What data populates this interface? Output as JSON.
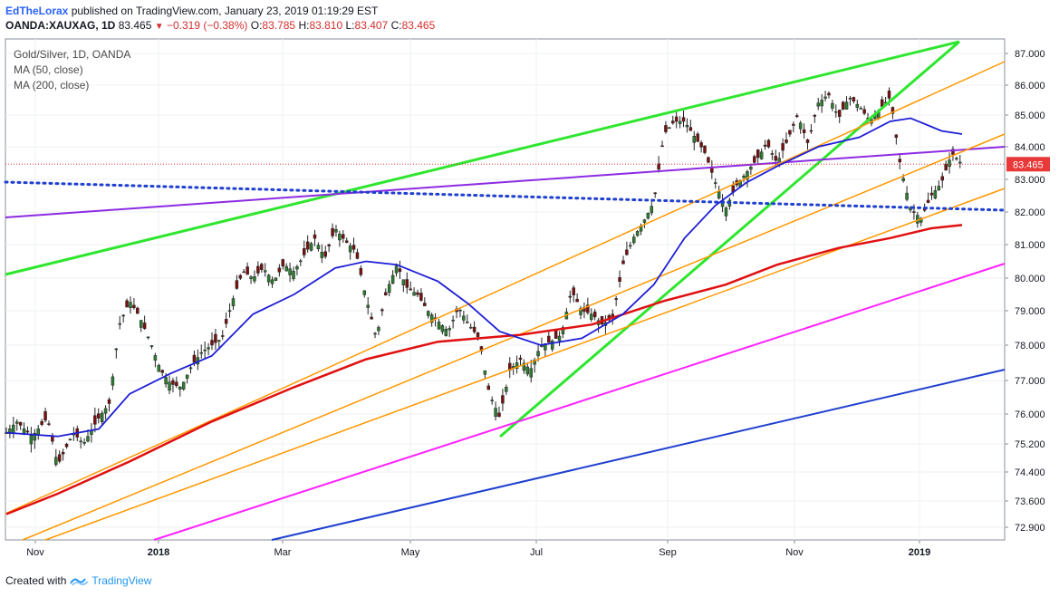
{
  "header": {
    "author": "EdTheLorax",
    "published_text": "published on TradingView.com, January 23, 2019 01:19:29 EST",
    "symbol": "OANDA:XAUXAG, 1D",
    "last": "83.465",
    "change": "−0.319 (−0.38%)",
    "open_label": "O:",
    "open": "83.785",
    "high_label": "H:",
    "high": "83.810",
    "low_label": "L:",
    "low": "83.407",
    "close_label": "C:",
    "close": "83.465"
  },
  "legend": {
    "title": "Gold/Silver, 1D, OANDA",
    "ma50": "MA (50, close)",
    "ma200": "MA (200, close)"
  },
  "footer": {
    "created_with": "Created with",
    "brand": "TradingView"
  },
  "colors": {
    "up": "#26a69a",
    "down": "#c62828",
    "candle_body_up": "#ffffff",
    "candle_body_down": "#8b1a1a",
    "ma50": "#1e1ed6",
    "ma200": "#e01010",
    "green_line": "#2ee62e",
    "orange_line": "#ff9800",
    "purple_line": "#8c2be2",
    "magenta_line": "#ff22ff",
    "blue_line": "#1f3fd0",
    "dotted_blue": "#1f3fd0",
    "price_tag": "#e83838"
  },
  "chart_data": {
    "type": "candlestick",
    "y_ticks": [
      "87.000",
      "86.000",
      "85.000",
      "84.000",
      "83.000",
      "82.000",
      "81.000",
      "80.000",
      "79.000",
      "78.000",
      "77.000",
      "76.000",
      "75.200",
      "74.400",
      "73.600",
      "72.900"
    ],
    "x_ticks": [
      {
        "label": "Nov",
        "bold": false
      },
      {
        "label": "2018",
        "bold": true
      },
      {
        "label": "Mar",
        "bold": false
      },
      {
        "label": "May",
        "bold": false
      },
      {
        "label": "Jul",
        "bold": false
      },
      {
        "label": "Sep",
        "bold": false
      },
      {
        "label": "Nov",
        "bold": false
      },
      {
        "label": "2019",
        "bold": true
      }
    ],
    "last_price_label": "83.465",
    "last_price": 83.465,
    "close_path": [
      [
        0,
        75.5
      ],
      [
        4,
        75.8
      ],
      [
        10,
        75.4
      ],
      [
        16,
        75.9
      ],
      [
        20,
        74.6
      ],
      [
        26,
        75.5
      ],
      [
        30,
        75.2
      ],
      [
        36,
        75.9
      ],
      [
        40,
        76.3
      ],
      [
        44,
        78.6
      ],
      [
        48,
        79.3
      ],
      [
        52,
        78.8
      ],
      [
        56,
        78.1
      ],
      [
        60,
        77.3
      ],
      [
        64,
        76.9
      ],
      [
        68,
        76.8
      ],
      [
        72,
        77.4
      ],
      [
        76,
        77.8
      ],
      [
        80,
        78.0
      ],
      [
        84,
        78.2
      ],
      [
        88,
        79.3
      ],
      [
        92,
        80.2
      ],
      [
        96,
        80.0
      ],
      [
        100,
        80.3
      ],
      [
        104,
        79.9
      ],
      [
        108,
        80.4
      ],
      [
        112,
        80.2
      ],
      [
        116,
        80.7
      ],
      [
        120,
        81.2
      ],
      [
        124,
        80.6
      ],
      [
        128,
        81.5
      ],
      [
        132,
        81.1
      ],
      [
        136,
        80.8
      ],
      [
        140,
        79.4
      ],
      [
        144,
        78.2
      ],
      [
        148,
        79.6
      ],
      [
        152,
        80.4
      ],
      [
        156,
        79.7
      ],
      [
        160,
        79.5
      ],
      [
        164,
        79.0
      ],
      [
        168,
        78.7
      ],
      [
        172,
        78.4
      ],
      [
        176,
        79.1
      ],
      [
        180,
        78.6
      ],
      [
        184,
        78.2
      ],
      [
        188,
        76.6
      ],
      [
        192,
        75.9
      ],
      [
        196,
        77.3
      ],
      [
        200,
        77.6
      ],
      [
        204,
        77.3
      ],
      [
        208,
        78.0
      ],
      [
        212,
        78.1
      ],
      [
        216,
        78.3
      ],
      [
        220,
        79.6
      ],
      [
        224,
        79.0
      ],
      [
        228,
        78.9
      ],
      [
        232,
        78.6
      ],
      [
        236,
        78.8
      ],
      [
        240,
        80.4
      ],
      [
        244,
        81.2
      ],
      [
        248,
        81.7
      ],
      [
        252,
        82.3
      ],
      [
        256,
        84.4
      ],
      [
        260,
        84.8
      ],
      [
        264,
        84.8
      ],
      [
        268,
        84.3
      ],
      [
        272,
        83.8
      ],
      [
        276,
        82.9
      ],
      [
        280,
        82.1
      ],
      [
        284,
        82.8
      ],
      [
        288,
        83.2
      ],
      [
        292,
        83.6
      ],
      [
        296,
        84.1
      ],
      [
        300,
        83.5
      ],
      [
        304,
        84.2
      ],
      [
        308,
        85.0
      ],
      [
        312,
        84.1
      ],
      [
        316,
        85.4
      ],
      [
        320,
        85.7
      ],
      [
        324,
        84.9
      ],
      [
        328,
        85.6
      ],
      [
        332,
        85.3
      ],
      [
        336,
        84.8
      ],
      [
        340,
        85.2
      ],
      [
        344,
        85.6
      ],
      [
        348,
        83.4
      ],
      [
        352,
        82.1
      ],
      [
        356,
        81.8
      ],
      [
        360,
        82.5
      ],
      [
        364,
        82.9
      ],
      [
        368,
        83.8
      ],
      [
        372,
        83.465
      ]
    ],
    "ma50_points": [
      [
        0,
        75.5
      ],
      [
        20,
        75.4
      ],
      [
        36,
        75.6
      ],
      [
        48,
        76.6
      ],
      [
        64,
        77.2
      ],
      [
        80,
        77.7
      ],
      [
        96,
        78.9
      ],
      [
        112,
        79.5
      ],
      [
        128,
        80.3
      ],
      [
        140,
        80.5
      ],
      [
        152,
        80.4
      ],
      [
        168,
        79.9
      ],
      [
        180,
        79.2
      ],
      [
        192,
        78.4
      ],
      [
        208,
        78.0
      ],
      [
        224,
        78.2
      ],
      [
        240,
        78.9
      ],
      [
        252,
        79.8
      ],
      [
        264,
        81.2
      ],
      [
        276,
        82.2
      ],
      [
        288,
        82.9
      ],
      [
        300,
        83.4
      ],
      [
        316,
        84.0
      ],
      [
        332,
        84.3
      ],
      [
        344,
        84.8
      ],
      [
        352,
        84.9
      ],
      [
        364,
        84.5
      ],
      [
        372,
        84.4
      ]
    ],
    "ma200_points": [
      [
        0,
        73.25
      ],
      [
        20,
        73.8
      ],
      [
        48,
        74.7
      ],
      [
        80,
        75.8
      ],
      [
        112,
        76.8
      ],
      [
        140,
        77.6
      ],
      [
        168,
        78.1
      ],
      [
        200,
        78.3
      ],
      [
        228,
        78.6
      ],
      [
        256,
        79.3
      ],
      [
        280,
        79.8
      ],
      [
        300,
        80.4
      ],
      [
        324,
        80.9
      ],
      [
        344,
        81.2
      ],
      [
        360,
        81.5
      ],
      [
        372,
        81.6
      ]
    ]
  }
}
